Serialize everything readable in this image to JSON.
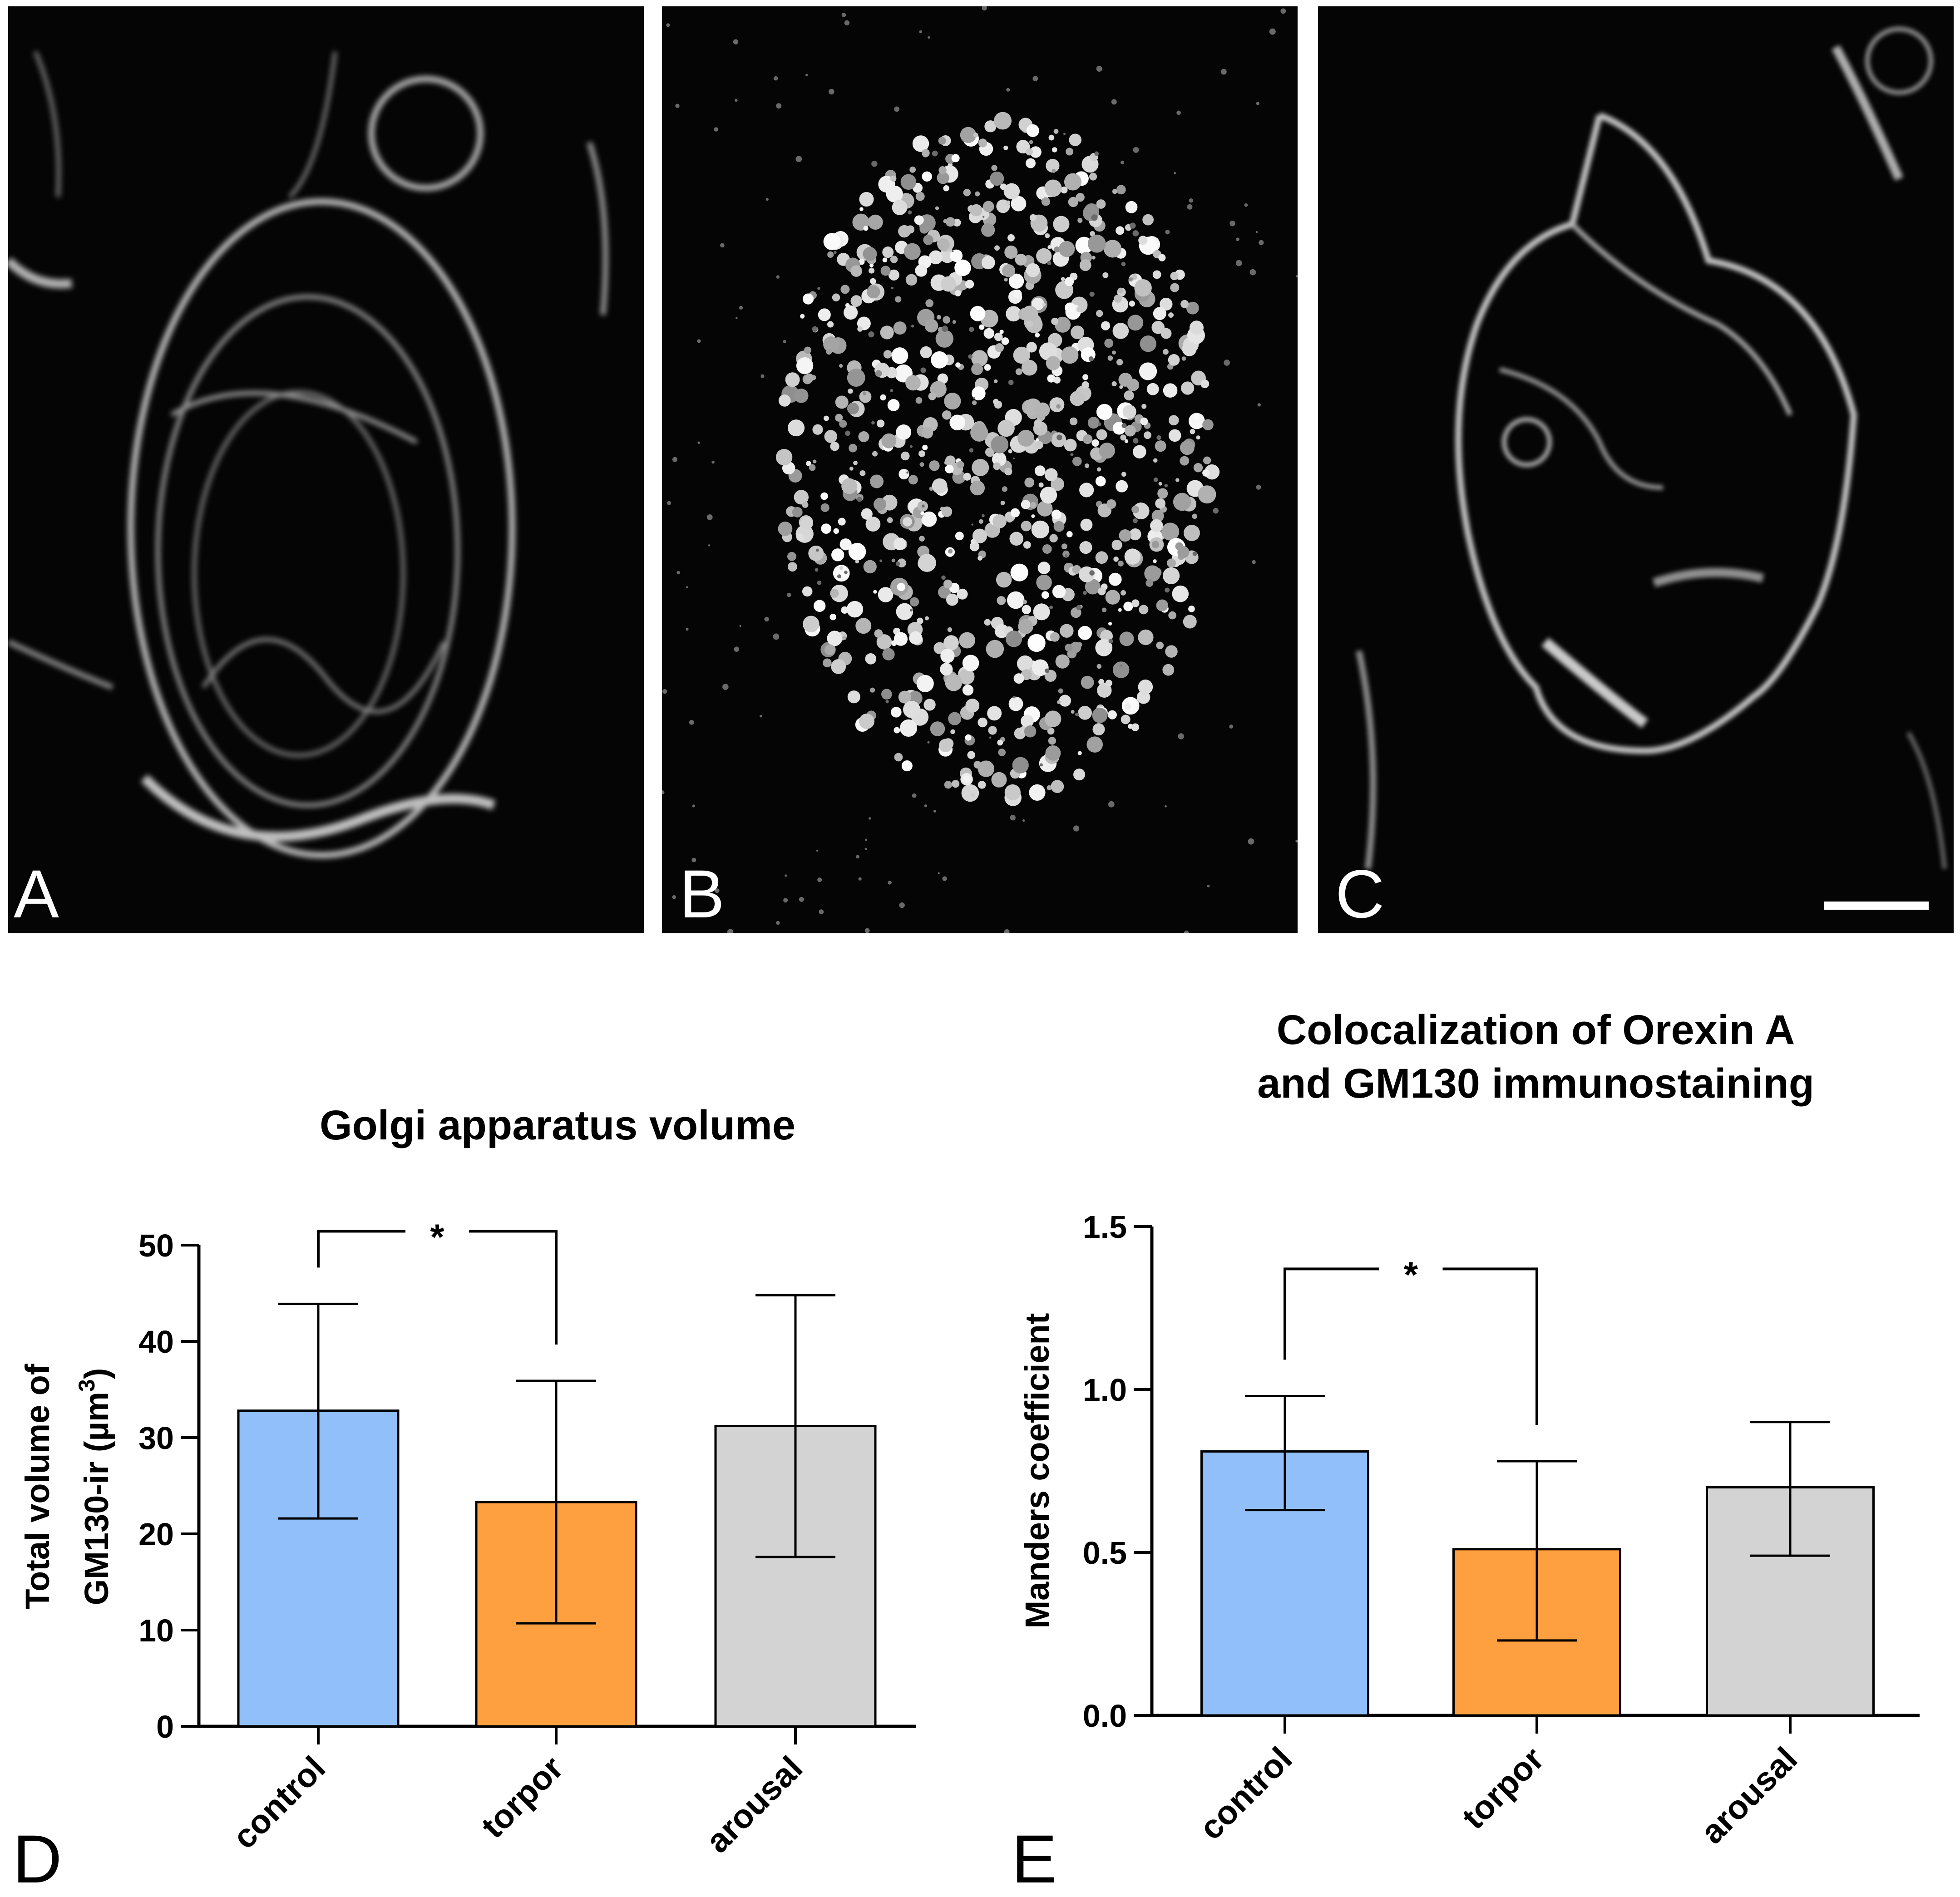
{
  "panels": [
    {
      "label": "A"
    },
    {
      "label": "B"
    },
    {
      "label": "C"
    }
  ],
  "chart_data": [
    {
      "panel_label": "D",
      "type": "bar",
      "title": "Golgi apparatus volume",
      "title_lines": [
        "Golgi apparatus volume"
      ],
      "ylabel": "Total volume of",
      "ylabel_line2": "GM130-ir (µm",
      "ylabel_sup": "3",
      "ylabel_close": ")",
      "categories": [
        "control",
        "torpor",
        "arousal"
      ],
      "values": [
        32.8,
        23.3,
        31.2
      ],
      "error_upper": [
        43.9,
        35.9,
        44.8
      ],
      "error_lower": [
        21.6,
        10.7,
        17.6
      ],
      "ylim": [
        0,
        50
      ],
      "yticks": [
        0,
        10,
        20,
        30,
        40,
        50
      ],
      "ytick_labels": [
        "0",
        "10",
        "20",
        "30",
        "40",
        "50"
      ],
      "colors": [
        "#90BFF9",
        "#FFA040",
        "#D3D3D3"
      ],
      "significance": {
        "from": 0,
        "to": 1,
        "label": "*"
      }
    },
    {
      "panel_label": "E",
      "type": "bar",
      "title": "Colocalization of Orexin A and GM130 immunostaining",
      "title_lines": [
        "Colocalization of Orexin A",
        "and GM130 immunostaining"
      ],
      "ylabel": "Manders coefficient",
      "categories": [
        "control",
        "torpor",
        "arousal"
      ],
      "values": [
        0.81,
        0.51,
        0.7
      ],
      "error_upper": [
        0.98,
        0.78,
        0.9
      ],
      "error_lower": [
        0.63,
        0.23,
        0.49
      ],
      "ylim": [
        0,
        1.5
      ],
      "yticks": [
        0,
        0.5,
        1.0,
        1.5
      ],
      "ytick_labels": [
        "0.0",
        "0.5",
        "1.0",
        "1.5"
      ],
      "colors": [
        "#90BFF9",
        "#FFA040",
        "#D3D3D3"
      ],
      "significance": {
        "from": 0,
        "to": 1,
        "label": "*"
      }
    }
  ]
}
